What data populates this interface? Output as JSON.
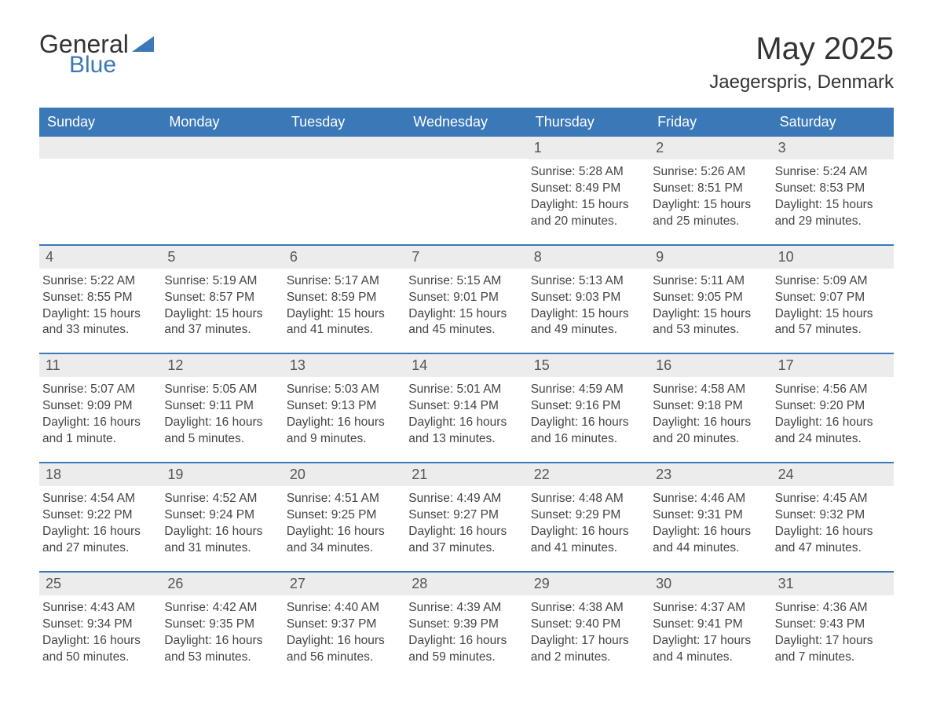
{
  "logo": {
    "text1": "General",
    "text2": "Blue"
  },
  "header": {
    "month_title": "May 2025",
    "location": "Jaegerspris, Denmark"
  },
  "colors": {
    "header_bg": "#3b78b8",
    "header_text": "#ffffff",
    "daybar_bg": "#ececec",
    "row_border": "#3b78b8",
    "body_text": "#444444",
    "page_bg": "#ffffff"
  },
  "typography": {
    "month_title_fontsize": 40,
    "location_fontsize": 24,
    "weekday_fontsize": 18,
    "daynum_fontsize": 18,
    "content_fontsize": 15.5
  },
  "weekdays": [
    "Sunday",
    "Monday",
    "Tuesday",
    "Wednesday",
    "Thursday",
    "Friday",
    "Saturday"
  ],
  "calendar": {
    "type": "table",
    "first_weekday_index": 4,
    "days": [
      {
        "n": "1",
        "sunrise": "Sunrise: 5:28 AM",
        "sunset": "Sunset: 8:49 PM",
        "daylight1": "Daylight: 15 hours",
        "daylight2": "and 20 minutes."
      },
      {
        "n": "2",
        "sunrise": "Sunrise: 5:26 AM",
        "sunset": "Sunset: 8:51 PM",
        "daylight1": "Daylight: 15 hours",
        "daylight2": "and 25 minutes."
      },
      {
        "n": "3",
        "sunrise": "Sunrise: 5:24 AM",
        "sunset": "Sunset: 8:53 PM",
        "daylight1": "Daylight: 15 hours",
        "daylight2": "and 29 minutes."
      },
      {
        "n": "4",
        "sunrise": "Sunrise: 5:22 AM",
        "sunset": "Sunset: 8:55 PM",
        "daylight1": "Daylight: 15 hours",
        "daylight2": "and 33 minutes."
      },
      {
        "n": "5",
        "sunrise": "Sunrise: 5:19 AM",
        "sunset": "Sunset: 8:57 PM",
        "daylight1": "Daylight: 15 hours",
        "daylight2": "and 37 minutes."
      },
      {
        "n": "6",
        "sunrise": "Sunrise: 5:17 AM",
        "sunset": "Sunset: 8:59 PM",
        "daylight1": "Daylight: 15 hours",
        "daylight2": "and 41 minutes."
      },
      {
        "n": "7",
        "sunrise": "Sunrise: 5:15 AM",
        "sunset": "Sunset: 9:01 PM",
        "daylight1": "Daylight: 15 hours",
        "daylight2": "and 45 minutes."
      },
      {
        "n": "8",
        "sunrise": "Sunrise: 5:13 AM",
        "sunset": "Sunset: 9:03 PM",
        "daylight1": "Daylight: 15 hours",
        "daylight2": "and 49 minutes."
      },
      {
        "n": "9",
        "sunrise": "Sunrise: 5:11 AM",
        "sunset": "Sunset: 9:05 PM",
        "daylight1": "Daylight: 15 hours",
        "daylight2": "and 53 minutes."
      },
      {
        "n": "10",
        "sunrise": "Sunrise: 5:09 AM",
        "sunset": "Sunset: 9:07 PM",
        "daylight1": "Daylight: 15 hours",
        "daylight2": "and 57 minutes."
      },
      {
        "n": "11",
        "sunrise": "Sunrise: 5:07 AM",
        "sunset": "Sunset: 9:09 PM",
        "daylight1": "Daylight: 16 hours",
        "daylight2": "and 1 minute."
      },
      {
        "n": "12",
        "sunrise": "Sunrise: 5:05 AM",
        "sunset": "Sunset: 9:11 PM",
        "daylight1": "Daylight: 16 hours",
        "daylight2": "and 5 minutes."
      },
      {
        "n": "13",
        "sunrise": "Sunrise: 5:03 AM",
        "sunset": "Sunset: 9:13 PM",
        "daylight1": "Daylight: 16 hours",
        "daylight2": "and 9 minutes."
      },
      {
        "n": "14",
        "sunrise": "Sunrise: 5:01 AM",
        "sunset": "Sunset: 9:14 PM",
        "daylight1": "Daylight: 16 hours",
        "daylight2": "and 13 minutes."
      },
      {
        "n": "15",
        "sunrise": "Sunrise: 4:59 AM",
        "sunset": "Sunset: 9:16 PM",
        "daylight1": "Daylight: 16 hours",
        "daylight2": "and 16 minutes."
      },
      {
        "n": "16",
        "sunrise": "Sunrise: 4:58 AM",
        "sunset": "Sunset: 9:18 PM",
        "daylight1": "Daylight: 16 hours",
        "daylight2": "and 20 minutes."
      },
      {
        "n": "17",
        "sunrise": "Sunrise: 4:56 AM",
        "sunset": "Sunset: 9:20 PM",
        "daylight1": "Daylight: 16 hours",
        "daylight2": "and 24 minutes."
      },
      {
        "n": "18",
        "sunrise": "Sunrise: 4:54 AM",
        "sunset": "Sunset: 9:22 PM",
        "daylight1": "Daylight: 16 hours",
        "daylight2": "and 27 minutes."
      },
      {
        "n": "19",
        "sunrise": "Sunrise: 4:52 AM",
        "sunset": "Sunset: 9:24 PM",
        "daylight1": "Daylight: 16 hours",
        "daylight2": "and 31 minutes."
      },
      {
        "n": "20",
        "sunrise": "Sunrise: 4:51 AM",
        "sunset": "Sunset: 9:25 PM",
        "daylight1": "Daylight: 16 hours",
        "daylight2": "and 34 minutes."
      },
      {
        "n": "21",
        "sunrise": "Sunrise: 4:49 AM",
        "sunset": "Sunset: 9:27 PM",
        "daylight1": "Daylight: 16 hours",
        "daylight2": "and 37 minutes."
      },
      {
        "n": "22",
        "sunrise": "Sunrise: 4:48 AM",
        "sunset": "Sunset: 9:29 PM",
        "daylight1": "Daylight: 16 hours",
        "daylight2": "and 41 minutes."
      },
      {
        "n": "23",
        "sunrise": "Sunrise: 4:46 AM",
        "sunset": "Sunset: 9:31 PM",
        "daylight1": "Daylight: 16 hours",
        "daylight2": "and 44 minutes."
      },
      {
        "n": "24",
        "sunrise": "Sunrise: 4:45 AM",
        "sunset": "Sunset: 9:32 PM",
        "daylight1": "Daylight: 16 hours",
        "daylight2": "and 47 minutes."
      },
      {
        "n": "25",
        "sunrise": "Sunrise: 4:43 AM",
        "sunset": "Sunset: 9:34 PM",
        "daylight1": "Daylight: 16 hours",
        "daylight2": "and 50 minutes."
      },
      {
        "n": "26",
        "sunrise": "Sunrise: 4:42 AM",
        "sunset": "Sunset: 9:35 PM",
        "daylight1": "Daylight: 16 hours",
        "daylight2": "and 53 minutes."
      },
      {
        "n": "27",
        "sunrise": "Sunrise: 4:40 AM",
        "sunset": "Sunset: 9:37 PM",
        "daylight1": "Daylight: 16 hours",
        "daylight2": "and 56 minutes."
      },
      {
        "n": "28",
        "sunrise": "Sunrise: 4:39 AM",
        "sunset": "Sunset: 9:39 PM",
        "daylight1": "Daylight: 16 hours",
        "daylight2": "and 59 minutes."
      },
      {
        "n": "29",
        "sunrise": "Sunrise: 4:38 AM",
        "sunset": "Sunset: 9:40 PM",
        "daylight1": "Daylight: 17 hours",
        "daylight2": "and 2 minutes."
      },
      {
        "n": "30",
        "sunrise": "Sunrise: 4:37 AM",
        "sunset": "Sunset: 9:41 PM",
        "daylight1": "Daylight: 17 hours",
        "daylight2": "and 4 minutes."
      },
      {
        "n": "31",
        "sunrise": "Sunrise: 4:36 AM",
        "sunset": "Sunset: 9:43 PM",
        "daylight1": "Daylight: 17 hours",
        "daylight2": "and 7 minutes."
      }
    ]
  }
}
